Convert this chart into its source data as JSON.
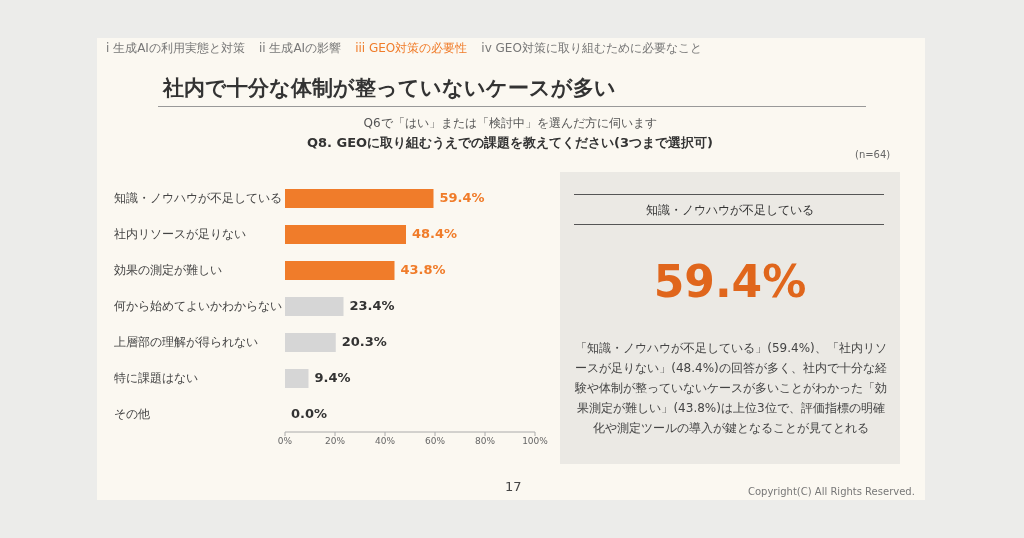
{
  "chart_data": [
    {
      "type": "bar",
      "orientation": "horizontal",
      "title": "Q8. GEOに取り組むうえでの課題を教えてください(3つまで選択可)",
      "subtitle": "Q6で「はい」または「検討中」を選んだ方に伺います",
      "categories": [
        "知識・ノウハウが不足している",
        "社内リソースが足りない",
        "効果の測定が難しい",
        "何から始めてよいかわからない",
        "上層部の理解が得られない",
        "特に課題はない",
        "その他"
      ],
      "values": [
        59.4,
        48.4,
        43.8,
        23.4,
        20.3,
        9.4,
        0.0
      ],
      "colors": [
        "#f07c2a",
        "#f07c2a",
        "#f07c2a",
        "#d6d6d6",
        "#d6d6d6",
        "#d6d6d6",
        "#d6d6d6"
      ],
      "value_labels": [
        "59.4%",
        "48.4%",
        "43.8%",
        "23.4%",
        "20.3%",
        "9.4%",
        "0.0%"
      ],
      "xlim": [
        0,
        100
      ],
      "xticks": [
        {
          "value": 0,
          "label": "0%"
        },
        {
          "value": 20,
          "label": "20%"
        },
        {
          "value": 40,
          "label": "40%"
        },
        {
          "value": 60,
          "label": "60%"
        },
        {
          "value": 80,
          "label": "80%"
        },
        {
          "value": 100,
          "label": "100%"
        }
      ],
      "annotations": [
        "i 生成AIの利用実態と対策",
        "ii 生成AIの影響",
        "iii GEO対策の必要性",
        "iv GEO対策に取り組むために必要なこと",
        "社内で十分な体制が整っていないケースが多い",
        "(n=64)",
        "17",
        "Copyright(C) All Rights Reserved."
      ]
    },
    {
      "type": "other",
      "title": "知識・ノウハウが不足している",
      "annotations": [
        "59.4%",
        "「知識・ノウハウが不足している」(59.4%)、「社内リソースが足りない」(48.4%)の回答が多く、社内で十分な経験や体制が整っていないケースが多いことがわかった「効果測定が難しい」(43.8%)は上位3位で、評価指標の明確化や測定ツールの導入が鍵となることが見てとれる"
      ]
    }
  ]
}
